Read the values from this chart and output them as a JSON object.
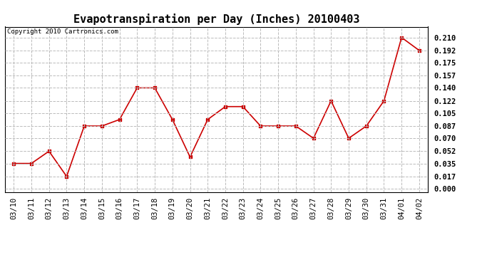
{
  "title": "Evapotranspiration per Day (Inches) 20100403",
  "copyright_text": "Copyright 2010 Cartronics.com",
  "x_labels": [
    "03/10",
    "03/11",
    "03/12",
    "03/13",
    "03/14",
    "03/15",
    "03/16",
    "03/17",
    "03/18",
    "03/19",
    "03/20",
    "03/21",
    "03/22",
    "03/23",
    "03/24",
    "03/25",
    "03/26",
    "03/27",
    "03/28",
    "03/29",
    "03/30",
    "03/31",
    "04/01",
    "04/02"
  ],
  "y_values": [
    0.035,
    0.035,
    0.052,
    0.017,
    0.087,
    0.087,
    0.096,
    0.14,
    0.14,
    0.096,
    0.044,
    0.096,
    0.114,
    0.114,
    0.087,
    0.087,
    0.087,
    0.07,
    0.122,
    0.07,
    0.087,
    0.122,
    0.21,
    0.192
  ],
  "y_ticks": [
    0.0,
    0.017,
    0.035,
    0.052,
    0.07,
    0.087,
    0.105,
    0.122,
    0.14,
    0.157,
    0.175,
    0.192,
    0.21
  ],
  "line_color": "#cc0000",
  "marker": "s",
  "marker_size": 3,
  "background_color": "#ffffff",
  "grid_color": "#bbbbbb",
  "title_fontsize": 11,
  "tick_fontsize": 7.5,
  "copyright_fontsize": 6.5,
  "ylim": [
    -0.005,
    0.225
  ]
}
